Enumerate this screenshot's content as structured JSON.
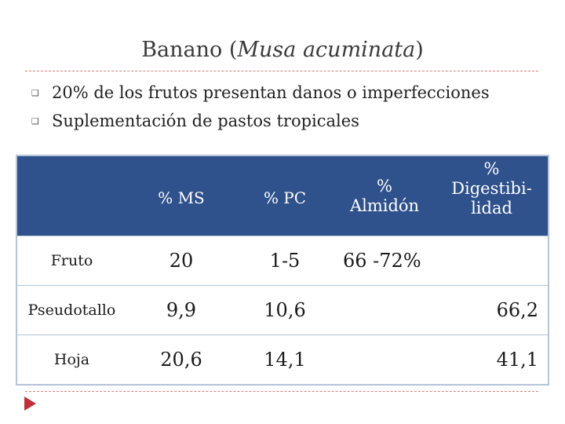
{
  "slide": {
    "title_main": "Banano (",
    "title_italic": "Musa acuminata",
    "title_end": ")",
    "bullets": [
      "20% de los frutos presentan danos o imperfecciones",
      "Suplementación de pastos tropicales"
    ]
  },
  "table": {
    "headers": [
      "",
      "% MS",
      "% PC",
      "% Almidón",
      "% Digestibi-lidad"
    ],
    "rows": [
      {
        "label": "Fruto",
        "ms": "20",
        "pc": "1-5",
        "almidon": "66 -72%",
        "digest": ""
      },
      {
        "label": "Pseudotallo",
        "ms": "9,9",
        "pc": "10,6",
        "almidon": "",
        "digest": "66,2"
      },
      {
        "label": "Hoja",
        "ms": "20,6",
        "pc": "14,1",
        "almidon": "",
        "digest": "41,1"
      }
    ]
  },
  "colors": {
    "header_bg": "#2f518c",
    "rule": "#d08080",
    "arrow": "#c0303a"
  },
  "icons": {
    "bullet": "square-bullet-icon",
    "nav": "play-arrow-icon"
  }
}
